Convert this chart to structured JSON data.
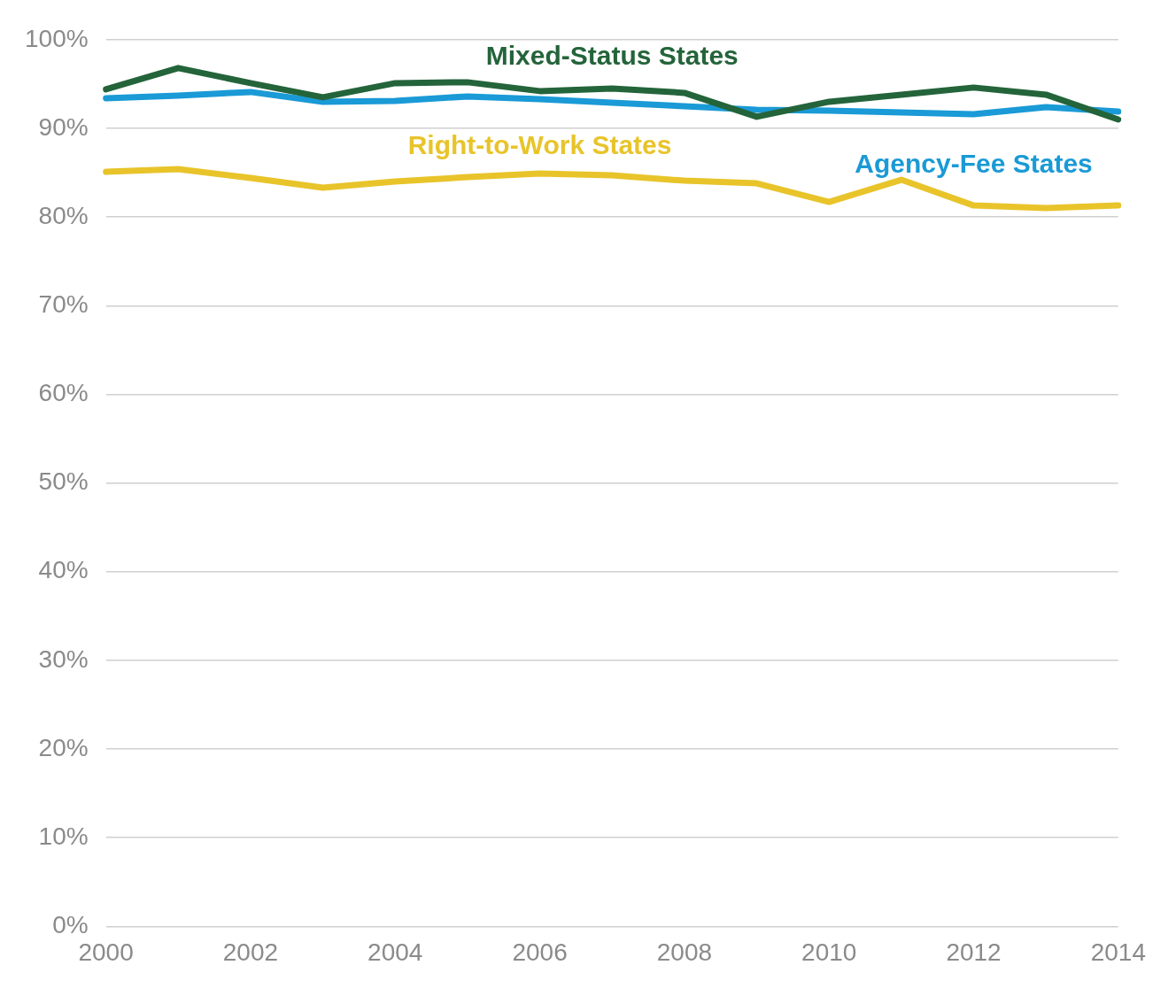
{
  "chart_data": {
    "type": "line",
    "categories": [
      "2000",
      null,
      "2002",
      null,
      "2004",
      null,
      "2006",
      null,
      "2008",
      null,
      "2010",
      null,
      "2012",
      null,
      "2014"
    ],
    "ylim": [
      0,
      100
    ],
    "yticks": [
      {
        "value": 0,
        "label": "0%"
      },
      {
        "value": 10,
        "label": "10%"
      },
      {
        "value": 20,
        "label": "20%"
      },
      {
        "value": 30,
        "label": "30%"
      },
      {
        "value": 40,
        "label": "40%"
      },
      {
        "value": 50,
        "label": "50%"
      },
      {
        "value": 60,
        "label": "60%"
      },
      {
        "value": 70,
        "label": "70%"
      },
      {
        "value": 80,
        "label": "80%"
      },
      {
        "value": 90,
        "label": "90%"
      },
      {
        "value": 100,
        "label": "100%"
      }
    ],
    "grid": "y",
    "legend": false,
    "marker": "none",
    "line_style": "solid",
    "series": [
      {
        "name": "Mixed-Status States",
        "color": "#24643a",
        "values": [
          94.4,
          96.8,
          95.1,
          93.5,
          95.1,
          95.2,
          94.2,
          94.5,
          94.0,
          91.3,
          93.0,
          93.8,
          94.6,
          93.8,
          91.0
        ]
      },
      {
        "name": "Agency-Fee States",
        "color": "#1a9ad6",
        "values": [
          93.4,
          93.7,
          94.1,
          93.0,
          93.1,
          93.6,
          93.3,
          92.9,
          92.5,
          92.1,
          92.0,
          91.8,
          91.6,
          92.4,
          91.9
        ]
      },
      {
        "name": "Right-to-Work States",
        "color": "#e8c42a",
        "values": [
          85.1,
          85.4,
          84.4,
          83.3,
          84.0,
          84.5,
          84.9,
          84.7,
          84.1,
          83.8,
          81.7,
          84.2,
          81.3,
          81.0,
          81.3
        ]
      }
    ]
  }
}
